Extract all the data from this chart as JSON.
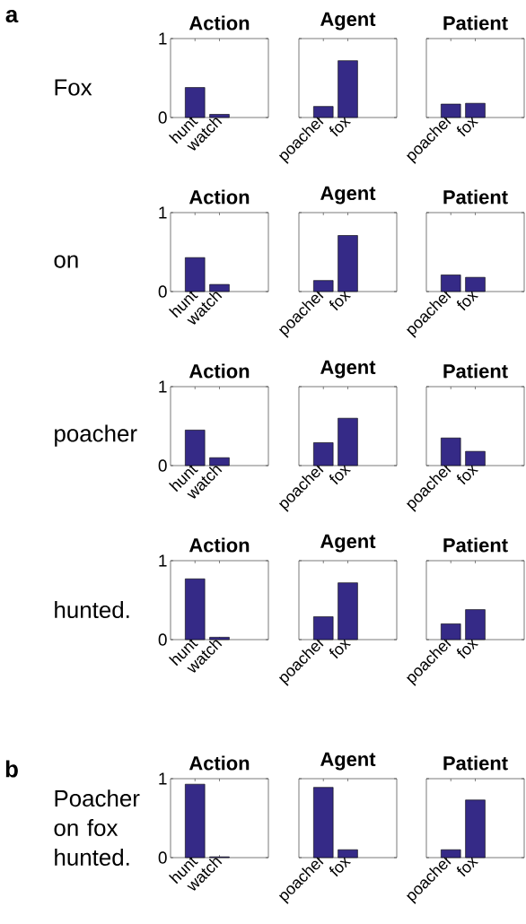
{
  "chart_data": [
    {
      "type": "bar",
      "title": "Action",
      "ylabel": "Fox",
      "annotations": [
        "a"
      ],
      "categories": [
        "hunt",
        "watch"
      ],
      "values": [
        0.38,
        0.04
      ],
      "color": "#352a87",
      "ylim": [
        0,
        1
      ],
      "yticks": [
        0,
        1
      ]
    },
    {
      "type": "bar",
      "title": "Agent",
      "categories": [
        "poacher",
        "fox"
      ],
      "values": [
        0.14,
        0.72
      ],
      "color": "#352a87",
      "ylim": [
        0,
        1
      ],
      "yticks": [
        0,
        1
      ],
      "tick_labels": "x"
    },
    {
      "type": "bar",
      "title": "Patient",
      "categories": [
        "poacher",
        "fox"
      ],
      "values": [
        0.17,
        0.18
      ],
      "color": "#352a87",
      "ylim": [
        0,
        1
      ],
      "yticks": [
        0,
        1
      ],
      "tick_labels": "x"
    },
    {
      "type": "bar",
      "title": "Action",
      "ylabel": "on",
      "categories": [
        "hunt",
        "watch"
      ],
      "values": [
        0.43,
        0.09
      ],
      "color": "#352a87",
      "ylim": [
        0,
        1
      ],
      "yticks": [
        0,
        1
      ]
    },
    {
      "type": "bar",
      "title": "Agent",
      "categories": [
        "poacher",
        "fox"
      ],
      "values": [
        0.14,
        0.71
      ],
      "color": "#352a87",
      "ylim": [
        0,
        1
      ],
      "yticks": [
        0,
        1
      ],
      "tick_labels": "x"
    },
    {
      "type": "bar",
      "title": "Patient",
      "categories": [
        "poacher",
        "fox"
      ],
      "values": [
        0.21,
        0.18
      ],
      "color": "#352a87",
      "ylim": [
        0,
        1
      ],
      "yticks": [
        0,
        1
      ],
      "tick_labels": "x"
    },
    {
      "type": "bar",
      "title": "Action",
      "ylabel": "poacher",
      "categories": [
        "hunt",
        "watch"
      ],
      "values": [
        0.45,
        0.1
      ],
      "color": "#352a87",
      "ylim": [
        0,
        1
      ],
      "yticks": [
        0,
        1
      ]
    },
    {
      "type": "bar",
      "title": "Agent",
      "categories": [
        "poacher",
        "fox"
      ],
      "values": [
        0.29,
        0.6
      ],
      "color": "#352a87",
      "ylim": [
        0,
        1
      ],
      "yticks": [
        0,
        1
      ],
      "tick_labels": "x"
    },
    {
      "type": "bar",
      "title": "Patient",
      "categories": [
        "poacher",
        "fox"
      ],
      "values": [
        0.35,
        0.18
      ],
      "color": "#352a87",
      "ylim": [
        0,
        1
      ],
      "yticks": [
        0,
        1
      ],
      "tick_labels": "x"
    },
    {
      "type": "bar",
      "title": "Action",
      "ylabel": "hunted.",
      "categories": [
        "hunt",
        "watch"
      ],
      "values": [
        0.77,
        0.03
      ],
      "color": "#352a87",
      "ylim": [
        0,
        1
      ],
      "yticks": [
        0,
        1
      ]
    },
    {
      "type": "bar",
      "title": "Agent",
      "categories": [
        "poacher",
        "fox"
      ],
      "values": [
        0.29,
        0.72
      ],
      "color": "#352a87",
      "ylim": [
        0,
        1
      ],
      "yticks": [
        0,
        1
      ],
      "tick_labels": "x"
    },
    {
      "type": "bar",
      "title": "Patient",
      "categories": [
        "poacher",
        "fox"
      ],
      "values": [
        0.2,
        0.38
      ],
      "color": "#352a87",
      "ylim": [
        0,
        1
      ],
      "yticks": [
        0,
        1
      ],
      "tick_labels": "x"
    },
    {
      "type": "bar",
      "title": "Action",
      "ylabel": "Poacher on fox hunted.",
      "annotations": [
        "b"
      ],
      "categories": [
        "hunt",
        "watch"
      ],
      "values": [
        0.93,
        0.01
      ],
      "color": "#352a87",
      "ylim": [
        0,
        1
      ],
      "yticks": [
        0,
        1
      ]
    },
    {
      "type": "bar",
      "title": "Agent",
      "categories": [
        "poacher",
        "fox"
      ],
      "values": [
        0.89,
        0.1
      ],
      "color": "#352a87",
      "ylim": [
        0,
        1
      ],
      "yticks": [
        0,
        1
      ],
      "tick_labels": "x"
    },
    {
      "type": "bar",
      "title": "Patient",
      "categories": [
        "poacher",
        "fox"
      ],
      "values": [
        0.1,
        0.73
      ],
      "color": "#352a87",
      "ylim": [
        0,
        1
      ],
      "yticks": [
        0,
        1
      ],
      "tick_labels": "x"
    }
  ]
}
